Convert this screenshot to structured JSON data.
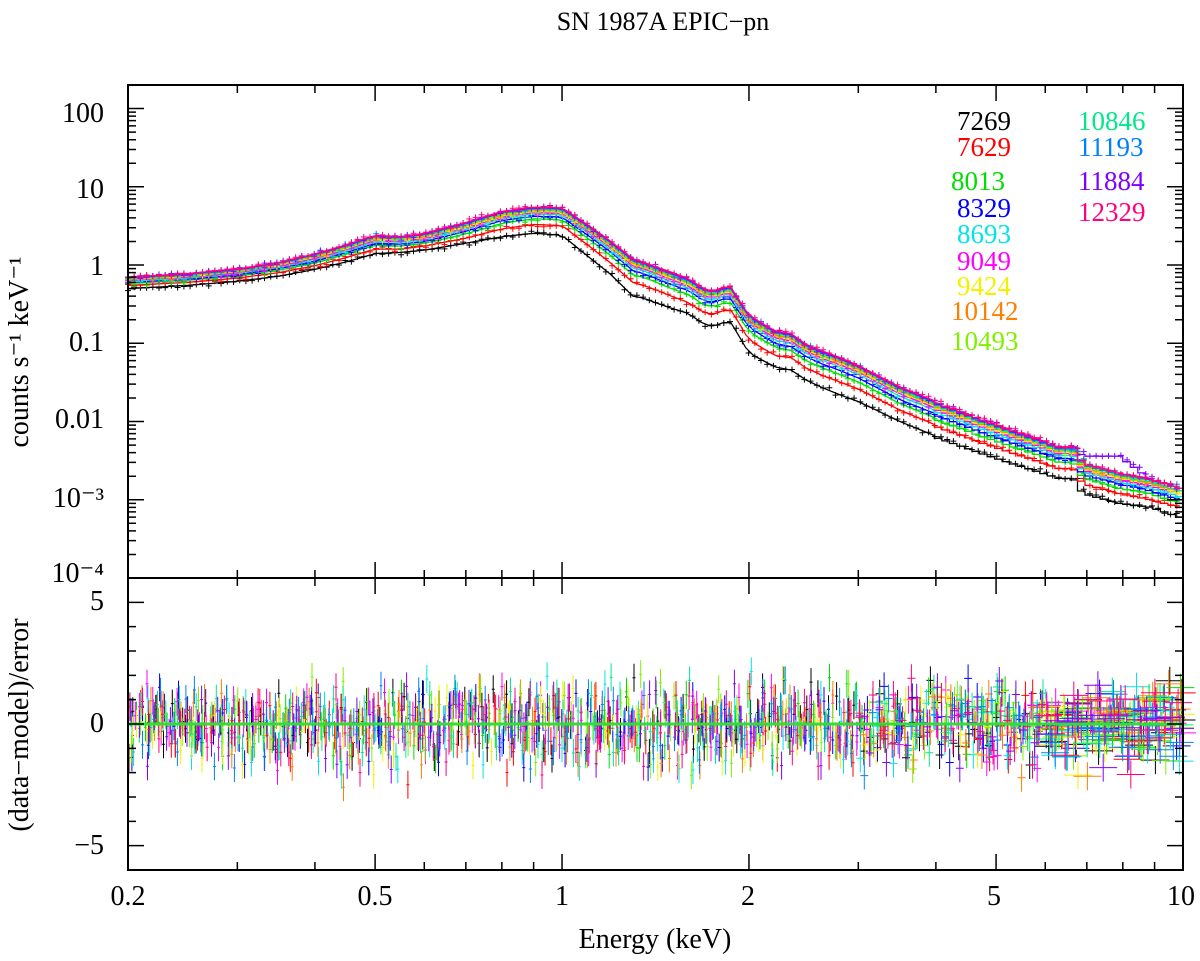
{
  "chart_data": [
    {
      "type": "line",
      "title": "SN 1987A EPIC−pn",
      "xlabel": "Energy (keV)",
      "ylabel": "counts s⁻¹ keV⁻¹",
      "xscale": "log",
      "yscale": "log",
      "xlim": [
        0.2,
        10
      ],
      "ylim": [
        0.0001,
        200
      ],
      "y_tick_labels": [
        "100",
        "10",
        "1",
        "0.1",
        "0.01",
        "10⁻³",
        "10⁻⁴"
      ],
      "grid": false,
      "legend_placement": "top-right",
      "x": [
        0.2,
        0.25,
        0.3,
        0.35,
        0.4,
        0.45,
        0.5,
        0.55,
        0.6,
        0.7,
        0.8,
        0.9,
        1.0,
        1.1,
        1.2,
        1.3,
        1.35,
        1.4,
        1.5,
        1.6,
        1.7,
        1.8,
        1.85,
        1.9,
        2.0,
        2.2,
        2.35,
        2.45,
        2.6,
        2.8,
        3.0,
        3.5,
        4.0,
        5.0,
        6.0,
        6.5,
        6.7,
        7.0,
        8.0,
        9.0,
        10.0
      ],
      "series": [
        {
          "name": "7269",
          "values": [
            0.5,
            0.55,
            0.62,
            0.72,
            0.88,
            1.1,
            1.4,
            1.45,
            1.55,
            1.9,
            2.3,
            2.55,
            2.4,
            1.3,
            0.75,
            0.4,
            0.38,
            0.34,
            0.28,
            0.24,
            0.17,
            0.17,
            0.21,
            0.15,
            0.075,
            0.05,
            0.045,
            0.035,
            0.028,
            0.022,
            0.018,
            0.01,
            0.0065,
            0.0035,
            0.0022,
            0.0018,
            0.002,
            0.0012,
            0.0009,
            0.0008,
            0.0006
          ]
        },
        {
          "name": "7629",
          "values": [
            0.55,
            0.6,
            0.68,
            0.8,
            0.98,
            1.25,
            1.6,
            1.6,
            1.75,
            2.2,
            2.9,
            3.3,
            3.2,
            1.8,
            1.05,
            0.6,
            0.55,
            0.5,
            0.4,
            0.33,
            0.24,
            0.24,
            0.3,
            0.22,
            0.11,
            0.07,
            0.065,
            0.05,
            0.04,
            0.032,
            0.026,
            0.014,
            0.009,
            0.0048,
            0.003,
            0.0024,
            0.0027,
            0.0016,
            0.0012,
            0.001,
            0.0008
          ]
        },
        {
          "name": "8013",
          "values": [
            0.58,
            0.64,
            0.72,
            0.86,
            1.06,
            1.38,
            1.8,
            1.75,
            1.9,
            2.5,
            3.4,
            3.9,
            3.8,
            2.2,
            1.3,
            0.75,
            0.7,
            0.63,
            0.5,
            0.42,
            0.3,
            0.3,
            0.37,
            0.27,
            0.14,
            0.09,
            0.08,
            0.062,
            0.05,
            0.04,
            0.032,
            0.017,
            0.011,
            0.0058,
            0.0036,
            0.0029,
            0.0032,
            0.0019,
            0.0014,
            0.0012,
            0.0009
          ]
        },
        {
          "name": "8329",
          "values": [
            0.6,
            0.66,
            0.75,
            0.9,
            1.12,
            1.45,
            1.9,
            1.85,
            2.0,
            2.7,
            3.7,
            4.2,
            4.1,
            2.4,
            1.45,
            0.85,
            0.78,
            0.7,
            0.56,
            0.47,
            0.34,
            0.34,
            0.42,
            0.3,
            0.16,
            0.1,
            0.09,
            0.07,
            0.056,
            0.045,
            0.036,
            0.019,
            0.0125,
            0.0065,
            0.004,
            0.0032,
            0.0036,
            0.0021,
            0.0016,
            0.0013,
            0.001
          ]
        },
        {
          "name": "8693",
          "values": [
            0.62,
            0.68,
            0.78,
            0.94,
            1.18,
            1.52,
            2.0,
            1.95,
            2.1,
            2.85,
            3.9,
            4.5,
            4.4,
            2.6,
            1.55,
            0.92,
            0.85,
            0.76,
            0.61,
            0.51,
            0.37,
            0.37,
            0.46,
            0.33,
            0.175,
            0.11,
            0.1,
            0.077,
            0.062,
            0.05,
            0.04,
            0.021,
            0.0138,
            0.0072,
            0.0044,
            0.0035,
            0.004,
            0.0023,
            0.0017,
            0.0014,
            0.0011
          ]
        },
        {
          "name": "9049",
          "values": [
            0.64,
            0.7,
            0.8,
            0.97,
            1.22,
            1.58,
            2.1,
            2.02,
            2.2,
            3.0,
            4.1,
            4.7,
            4.6,
            2.75,
            1.65,
            0.98,
            0.9,
            0.81,
            0.65,
            0.54,
            0.39,
            0.39,
            0.49,
            0.35,
            0.185,
            0.118,
            0.106,
            0.082,
            0.066,
            0.053,
            0.043,
            0.0225,
            0.0148,
            0.0077,
            0.0047,
            0.0037,
            0.0042,
            0.0024,
            0.0018,
            0.0015,
            0.0012
          ]
        },
        {
          "name": "9424",
          "values": [
            0.65,
            0.72,
            0.82,
            1.0,
            1.26,
            1.63,
            2.15,
            2.08,
            2.28,
            3.1,
            4.25,
            4.85,
            4.75,
            2.85,
            1.72,
            1.02,
            0.94,
            0.85,
            0.68,
            0.57,
            0.41,
            0.41,
            0.51,
            0.37,
            0.195,
            0.124,
            0.112,
            0.086,
            0.069,
            0.056,
            0.045,
            0.0236,
            0.0155,
            0.0081,
            0.0049,
            0.0039,
            0.0044,
            0.0025,
            0.0019,
            0.0016,
            0.0012
          ]
        },
        {
          "name": "10142",
          "values": [
            0.66,
            0.73,
            0.84,
            1.02,
            1.29,
            1.68,
            2.2,
            2.12,
            2.34,
            3.2,
            4.4,
            5.0,
            4.9,
            2.95,
            1.78,
            1.06,
            0.97,
            0.88,
            0.71,
            0.59,
            0.43,
            0.43,
            0.53,
            0.38,
            0.2,
            0.128,
            0.116,
            0.089,
            0.072,
            0.058,
            0.047,
            0.0245,
            0.016,
            0.0084,
            0.0051,
            0.004,
            0.0046,
            0.0026,
            0.002,
            0.0016,
            0.0013
          ]
        },
        {
          "name": "10493",
          "values": [
            0.67,
            0.74,
            0.85,
            1.04,
            1.31,
            1.71,
            2.25,
            2.16,
            2.38,
            3.27,
            4.5,
            5.1,
            5.0,
            3.02,
            1.83,
            1.09,
            1.0,
            0.9,
            0.73,
            0.61,
            0.44,
            0.44,
            0.55,
            0.39,
            0.207,
            0.132,
            0.12,
            0.092,
            0.074,
            0.06,
            0.048,
            0.0252,
            0.0165,
            0.0086,
            0.0052,
            0.0041,
            0.0047,
            0.0027,
            0.002,
            0.0017,
            0.0013
          ]
        },
        {
          "name": "10846",
          "values": [
            0.68,
            0.75,
            0.86,
            1.05,
            1.33,
            1.74,
            2.3,
            2.2,
            2.42,
            3.33,
            4.6,
            5.2,
            5.1,
            3.08,
            1.87,
            1.12,
            1.03,
            0.92,
            0.75,
            0.62,
            0.45,
            0.45,
            0.56,
            0.4,
            0.212,
            0.135,
            0.123,
            0.094,
            0.076,
            0.061,
            0.049,
            0.0258,
            0.0169,
            0.0088,
            0.0053,
            0.0042,
            0.0048,
            0.0028,
            0.0021,
            0.0017,
            0.0013
          ]
        },
        {
          "name": "11193",
          "values": [
            0.68,
            0.76,
            0.87,
            1.06,
            1.35,
            1.76,
            2.33,
            2.23,
            2.46,
            3.38,
            4.68,
            5.3,
            5.2,
            3.14,
            1.91,
            1.14,
            1.05,
            0.94,
            0.77,
            0.64,
            0.46,
            0.46,
            0.57,
            0.41,
            0.217,
            0.138,
            0.126,
            0.096,
            0.078,
            0.063,
            0.05,
            0.0264,
            0.0173,
            0.009,
            0.0054,
            0.0043,
            0.0049,
            0.0028,
            0.0021,
            0.0018,
            0.0014
          ]
        },
        {
          "name": "11884",
          "values": [
            0.69,
            0.77,
            0.88,
            1.07,
            1.37,
            1.79,
            2.37,
            2.27,
            2.5,
            3.44,
            4.76,
            5.4,
            5.3,
            3.2,
            1.95,
            1.17,
            1.08,
            0.96,
            0.79,
            0.65,
            0.47,
            0.47,
            0.58,
            0.42,
            0.222,
            0.141,
            0.129,
            0.098,
            0.08,
            0.064,
            0.051,
            0.027,
            0.0177,
            0.0092,
            0.0056,
            0.0044,
            0.0051,
            0.0036,
            0.0036,
            0.0018,
            0.0014
          ]
        },
        {
          "name": "12329",
          "values": [
            0.7,
            0.78,
            0.89,
            1.08,
            1.39,
            1.82,
            2.4,
            2.3,
            2.54,
            3.5,
            4.85,
            5.5,
            5.4,
            3.26,
            1.99,
            1.2,
            1.1,
            0.98,
            0.81,
            0.67,
            0.48,
            0.48,
            0.59,
            0.43,
            0.227,
            0.144,
            0.132,
            0.1,
            0.082,
            0.066,
            0.052,
            0.0276,
            0.0181,
            0.0094,
            0.0057,
            0.0045,
            0.0052,
            0.0029,
            0.0022,
            0.0018,
            0.0014
          ]
        }
      ],
      "colors": [
        "#000000",
        "#ff0000",
        "#00dd00",
        "#0000ff",
        "#00e5e5",
        "#ff00ff",
        "#f2f200",
        "#ff8000",
        "#80f000",
        "#00e88a",
        "#0080ff",
        "#8000ff",
        "#ff0080"
      ]
    },
    {
      "type": "scatter",
      "xlabel": "Energy (keV)",
      "ylabel": "(data−model)/error",
      "xscale": "log",
      "xlim": [
        0.2,
        10
      ],
      "ylim": [
        -6,
        6
      ],
      "y_tick_labels": [
        "5",
        "0",
        "−5"
      ],
      "x_tick_labels": [
        "0.2",
        "0.5",
        "1",
        "2",
        "5",
        "10"
      ],
      "reference_line": {
        "y": 0,
        "color": "#33dd33"
      },
      "grid": false
    }
  ]
}
